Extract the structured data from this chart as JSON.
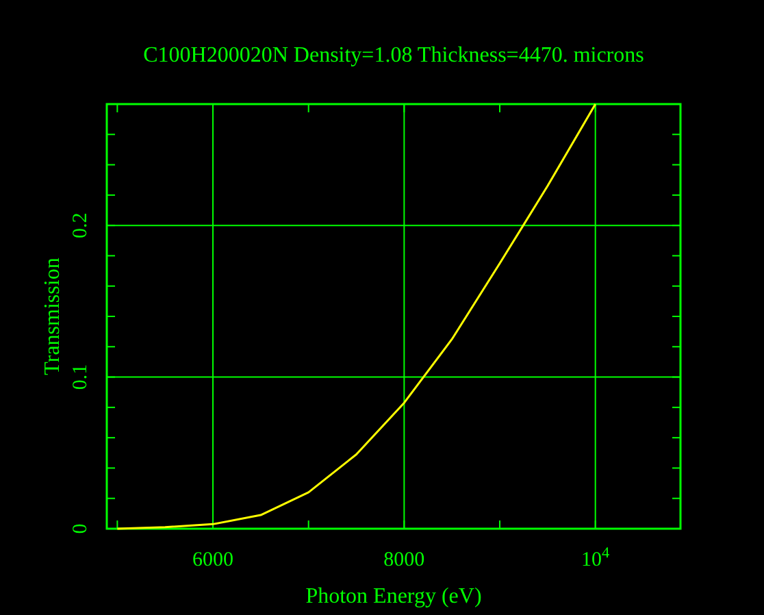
{
  "chart_data": {
    "type": "line",
    "title": "C100H200020N Density=1.08 Thickness=4470. microns",
    "xlabel": "Photon Energy (eV)",
    "ylabel": "Transmission",
    "x": [
      5000,
      5500,
      6000,
      6500,
      7000,
      7500,
      8000,
      8500,
      9000,
      9500,
      10000
    ],
    "series": [
      {
        "color": "#ffff00",
        "values": [
          0.0,
          0.001,
          0.003,
          0.009,
          0.024,
          0.049,
          0.083,
          0.125,
          0.175,
          0.226,
          0.28
        ]
      }
    ],
    "xlim": [
      4890,
      10890
    ],
    "ylim": [
      0,
      0.28
    ],
    "xticks": [
      {
        "value": 5000,
        "label": null
      },
      6000,
      {
        "value": 7000,
        "label": null
      },
      8000,
      {
        "value": 9000,
        "label": null
      },
      {
        "value": 10000,
        "label": "10$^{4}$"
      }
    ],
    "yticks": [
      0,
      {
        "value": 0.02,
        "label": null
      },
      {
        "value": 0.04,
        "label": null
      },
      {
        "value": 0.06,
        "label": null
      },
      {
        "value": 0.08,
        "label": null
      },
      0.1,
      {
        "value": 0.12,
        "label": null
      },
      {
        "value": 0.14,
        "label": null
      },
      {
        "value": 0.16,
        "label": null
      },
      {
        "value": 0.18,
        "label": null
      },
      0.2,
      {
        "value": 0.22,
        "label": null
      },
      {
        "value": 0.24,
        "label": null
      },
      {
        "value": 0.26,
        "label": null
      }
    ],
    "grid": true,
    "marker": "none",
    "line_style": "solid"
  }
}
